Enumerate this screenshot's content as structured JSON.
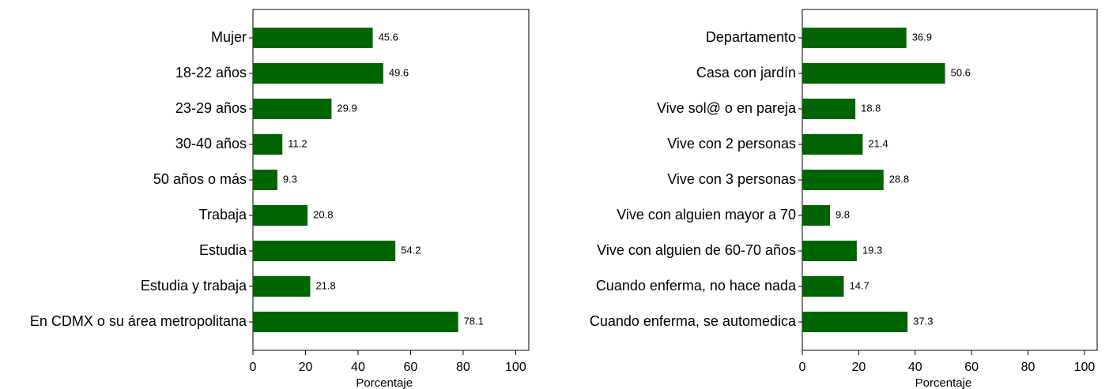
{
  "chart_data": [
    {
      "type": "bar",
      "orientation": "horizontal",
      "color": "#006400",
      "xlabel": "Porcentaje",
      "categories": [
        "Mujer",
        "18-22 años",
        "23-29 años",
        "30-40 años",
        "50 años o más",
        "Trabaja",
        "Estudia",
        "Estudia y trabaja",
        "En CDMX o su área metropolitana"
      ],
      "values": [
        45.6,
        49.6,
        29.9,
        11.2,
        9.3,
        20.8,
        54.2,
        21.8,
        78.1
      ],
      "xlim": [
        0,
        105
      ],
      "xticks": [
        0,
        20,
        40,
        60,
        80,
        100
      ]
    },
    {
      "type": "bar",
      "orientation": "horizontal",
      "color": "#006400",
      "xlabel": "Porcentaje",
      "categories": [
        "Departamento",
        "Casa con jardín",
        "Vive sol@ o en pareja",
        "Vive con 2 personas",
        "Vive con 3 personas",
        "Vive con alguien mayor a 70",
        "Vive con alguien de 60-70 años",
        "Cuando enferma, no hace nada",
        "Cuando enferma, se automedica"
      ],
      "values": [
        36.9,
        50.6,
        18.8,
        21.4,
        28.8,
        9.8,
        19.3,
        14.7,
        37.3
      ],
      "xlim": [
        0,
        104.5
      ],
      "xticks": [
        0,
        20,
        40,
        60,
        80,
        100
      ]
    }
  ]
}
